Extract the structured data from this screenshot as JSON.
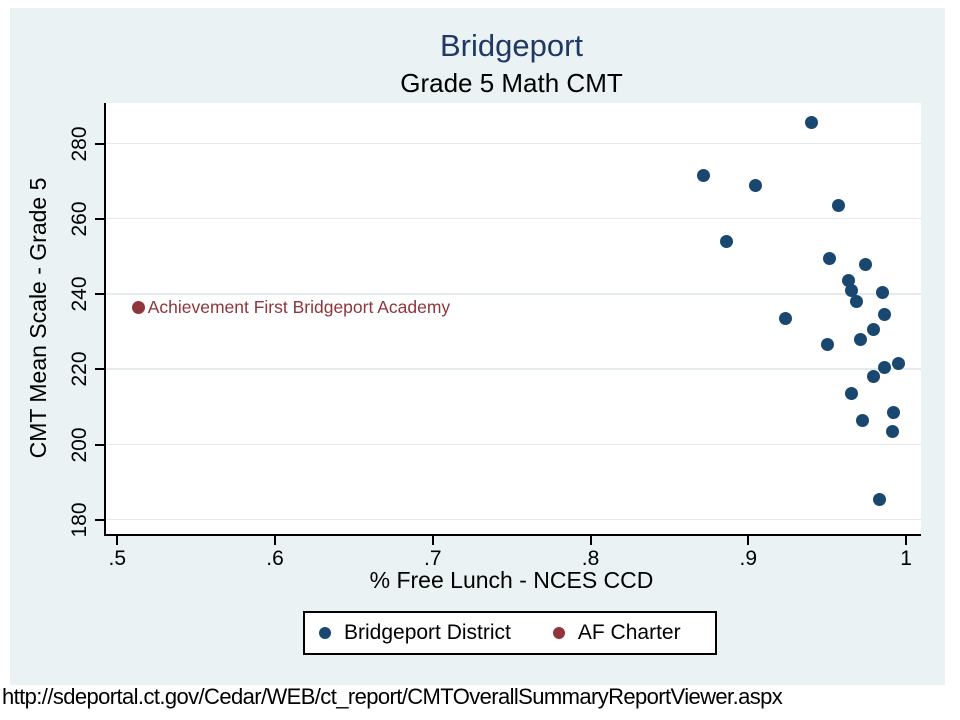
{
  "figure": {
    "title": "Bridgeport",
    "subtitle": "Grade 5 Math CMT"
  },
  "caption": {
    "url": "http://sdeportal.ct.gov/Cedar/WEB/ct_report/CMTOverallSummaryReportViewer.aspx"
  },
  "colors": {
    "figure_background": "#eaf2f3",
    "plot_background": "#ffffff",
    "gridline": "#e4ebed",
    "axis": "#000000",
    "title_text": "#1f3864",
    "district_marker": "#1a476f",
    "charter_marker": "#90353b"
  },
  "chart_data": {
    "type": "scatter",
    "title": "Bridgeport",
    "subtitle": "Grade 5 Math CMT",
    "xlabel": "% Free Lunch - NCES CCD",
    "ylabel": "CMT Mean Scale - Grade 5",
    "xlim": [
      0.4916,
      1.0082
    ],
    "ylim": [
      176.2,
      290.8
    ],
    "grid": "horizontal-only",
    "legend_position": "bottom-center",
    "x_ticks": [
      {
        "v": 0.5,
        "label": ".5"
      },
      {
        "v": 0.6,
        "label": ".6"
      },
      {
        "v": 0.7,
        "label": ".7"
      },
      {
        "v": 0.8,
        "label": ".8"
      },
      {
        "v": 0.9,
        "label": ".9"
      },
      {
        "v": 1.0,
        "label": "1"
      }
    ],
    "y_ticks": [
      {
        "v": 180,
        "label": "180"
      },
      {
        "v": 200,
        "label": "200"
      },
      {
        "v": 220,
        "label": "220"
      },
      {
        "v": 240,
        "label": "240"
      },
      {
        "v": 260,
        "label": "260"
      },
      {
        "v": 280,
        "label": "280"
      }
    ],
    "series": [
      {
        "name": "Bridgeport District",
        "color": "#1a476f",
        "points": [
          [
            0.939,
            285.5
          ],
          [
            0.87,
            271.5
          ],
          [
            0.903,
            269.0
          ],
          [
            0.956,
            263.5
          ],
          [
            0.885,
            254.0
          ],
          [
            0.95,
            249.5
          ],
          [
            0.973,
            248.0
          ],
          [
            0.962,
            243.5
          ],
          [
            0.964,
            241.0
          ],
          [
            0.967,
            238.0
          ],
          [
            0.984,
            240.5
          ],
          [
            0.985,
            234.5
          ],
          [
            0.922,
            233.5
          ],
          [
            0.978,
            230.5
          ],
          [
            0.97,
            228.0
          ],
          [
            0.949,
            226.5
          ],
          [
            0.994,
            221.5
          ],
          [
            0.985,
            220.5
          ],
          [
            0.978,
            218.0
          ],
          [
            0.964,
            213.5
          ],
          [
            0.991,
            208.5
          ],
          [
            0.971,
            206.5
          ],
          [
            0.99,
            203.5
          ],
          [
            0.982,
            185.5
          ]
        ]
      },
      {
        "name": "AF Charter",
        "color": "#90353b",
        "points": [
          [
            0.512,
            236.5
          ]
        ],
        "annotation": "Achievement First Bridgeport Academy"
      }
    ]
  }
}
